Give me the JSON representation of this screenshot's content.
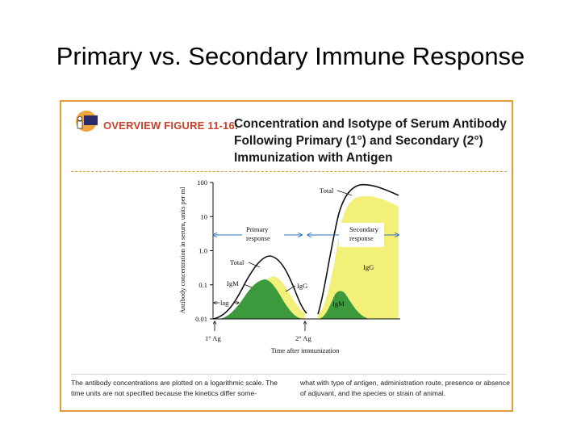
{
  "slide": {
    "title": "Primary vs. Secondary Immune Response"
  },
  "figure": {
    "label": "OVERVIEW FIGURE 11-16:",
    "title": "Concentration and Isotype of Serum Antibody Following Primary (1°) and Secondary (2°) Immunization with Antigen",
    "icon": "scientist-at-board-icon",
    "colors": {
      "frame": "#e39a3a",
      "label": "#c7422b",
      "igm": "#3c9a3c",
      "igg": "#f3f07a",
      "arrow": "#2f6fbf"
    }
  },
  "chart_data": {
    "type": "area",
    "title": "",
    "xlabel": "Time after immunization",
    "ylabel": "Antibody concentration in serum, units per ml",
    "yscale": "log",
    "ylim": [
      0.01,
      100
    ],
    "yticks": [
      "100",
      "10",
      "1.0",
      "0.1",
      "0.01"
    ],
    "x_events": [
      "1° Ag",
      "2° Ag"
    ],
    "series": [
      {
        "name": "Total",
        "peaks": [
          0.3,
          40
        ]
      },
      {
        "name": "IgM",
        "peaks": [
          0.15,
          0.1
        ]
      },
      {
        "name": "IgG",
        "peaks": [
          0.1,
          30
        ]
      }
    ],
    "annotations": {
      "primary": "Primary response",
      "secondary": "Secondary response",
      "lag": "lag",
      "total_primary": "Total",
      "total_secondary": "Total",
      "igm_primary": "IgM",
      "igg_primary": "IgG",
      "igg_secondary": "IgG",
      "igm_secondary": "IgM",
      "ag1": "1° Ag",
      "ag2": "2° Ag"
    },
    "grid": false,
    "legend": "none"
  },
  "caption": {
    "left": "The antibody concentrations are plotted on a logarithmic scale. The time units are not specified because the kinetics differ some-",
    "right": "what with type of antigen, administration route, presence or absence of adjuvant, and the species or strain of animal."
  }
}
